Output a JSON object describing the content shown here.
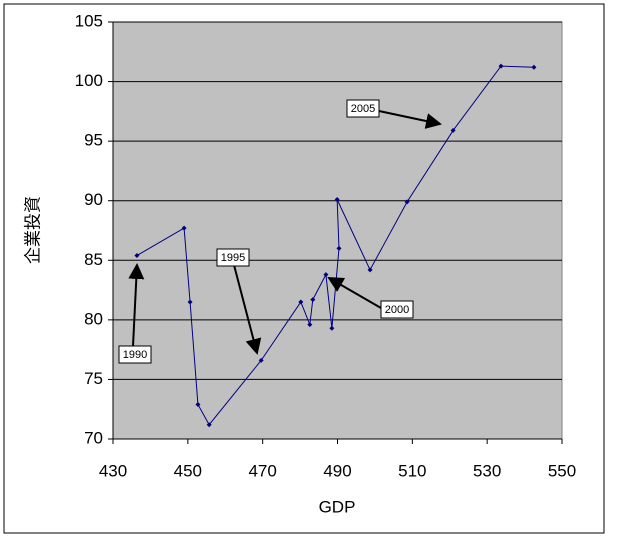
{
  "chart_data": {
    "type": "scatter_line",
    "x_label": "GDP",
    "y_label": "企業投資",
    "color": "#000080",
    "x": [
      436.4,
      449.0,
      450.6,
      452.7,
      455.7,
      469.6,
      480.2,
      482.6,
      483.4,
      486.9,
      488.5,
      490.4,
      489.9,
      498.7,
      508.6,
      520.9,
      533.7,
      542.5
    ],
    "values": [
      85.4,
      87.7,
      81.5,
      72.9,
      71.2,
      76.6,
      81.5,
      79.6,
      81.7,
      83.8,
      79.3,
      86.0,
      90.1,
      84.2,
      89.9,
      95.9,
      101.3,
      101.2
    ],
    "xlim": [
      430,
      550
    ],
    "xticks": [
      430,
      450,
      470,
      490,
      510,
      530,
      550
    ],
    "ylim": [
      70,
      105
    ],
    "yticks": [
      70,
      75,
      80,
      85,
      90,
      95,
      100,
      105
    ],
    "grid": true,
    "annotations": [
      "1990",
      "1995",
      "2000",
      "2005"
    ]
  }
}
